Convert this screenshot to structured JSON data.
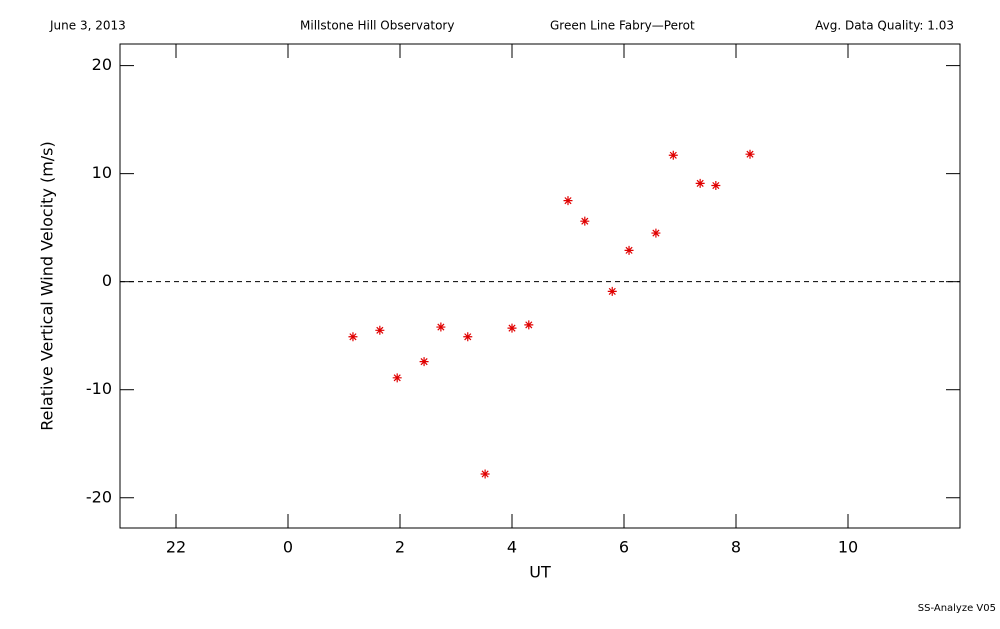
{
  "header": {
    "date": "June 3, 2013",
    "observatory": "Millstone Hill Observatory",
    "instrument": "Green Line Fabry—Perot",
    "quality": "Avg. Data Quality: 1.03"
  },
  "footer": "SS-Analyze V05",
  "chart_data": {
    "type": "scatter",
    "x_label": "UT",
    "y_label": "Relative Vertical Wind Velocity (m/s)",
    "x": [
      1.16,
      1.64,
      1.95,
      2.43,
      2.73,
      3.21,
      3.52,
      4.0,
      4.3,
      5.0,
      5.3,
      5.79,
      6.09,
      6.57,
      6.88,
      7.36,
      7.64,
      8.25
    ],
    "values": [
      -5.1,
      -4.5,
      -8.9,
      -7.4,
      -4.2,
      -5.1,
      -17.8,
      -4.3,
      -4.0,
      7.5,
      5.6,
      -0.9,
      2.9,
      4.5,
      11.7,
      9.1,
      8.9,
      11.8
    ],
    "color": "#e00000",
    "xlim": [
      -3,
      12
    ],
    "xticks": [
      {
        "value": -2,
        "label": "22"
      },
      0,
      2,
      4,
      6,
      8,
      10
    ],
    "ylim": [
      -22.8,
      22
    ],
    "yticks": [
      -20,
      -10,
      0,
      10,
      20
    ],
    "hline": 0
  }
}
